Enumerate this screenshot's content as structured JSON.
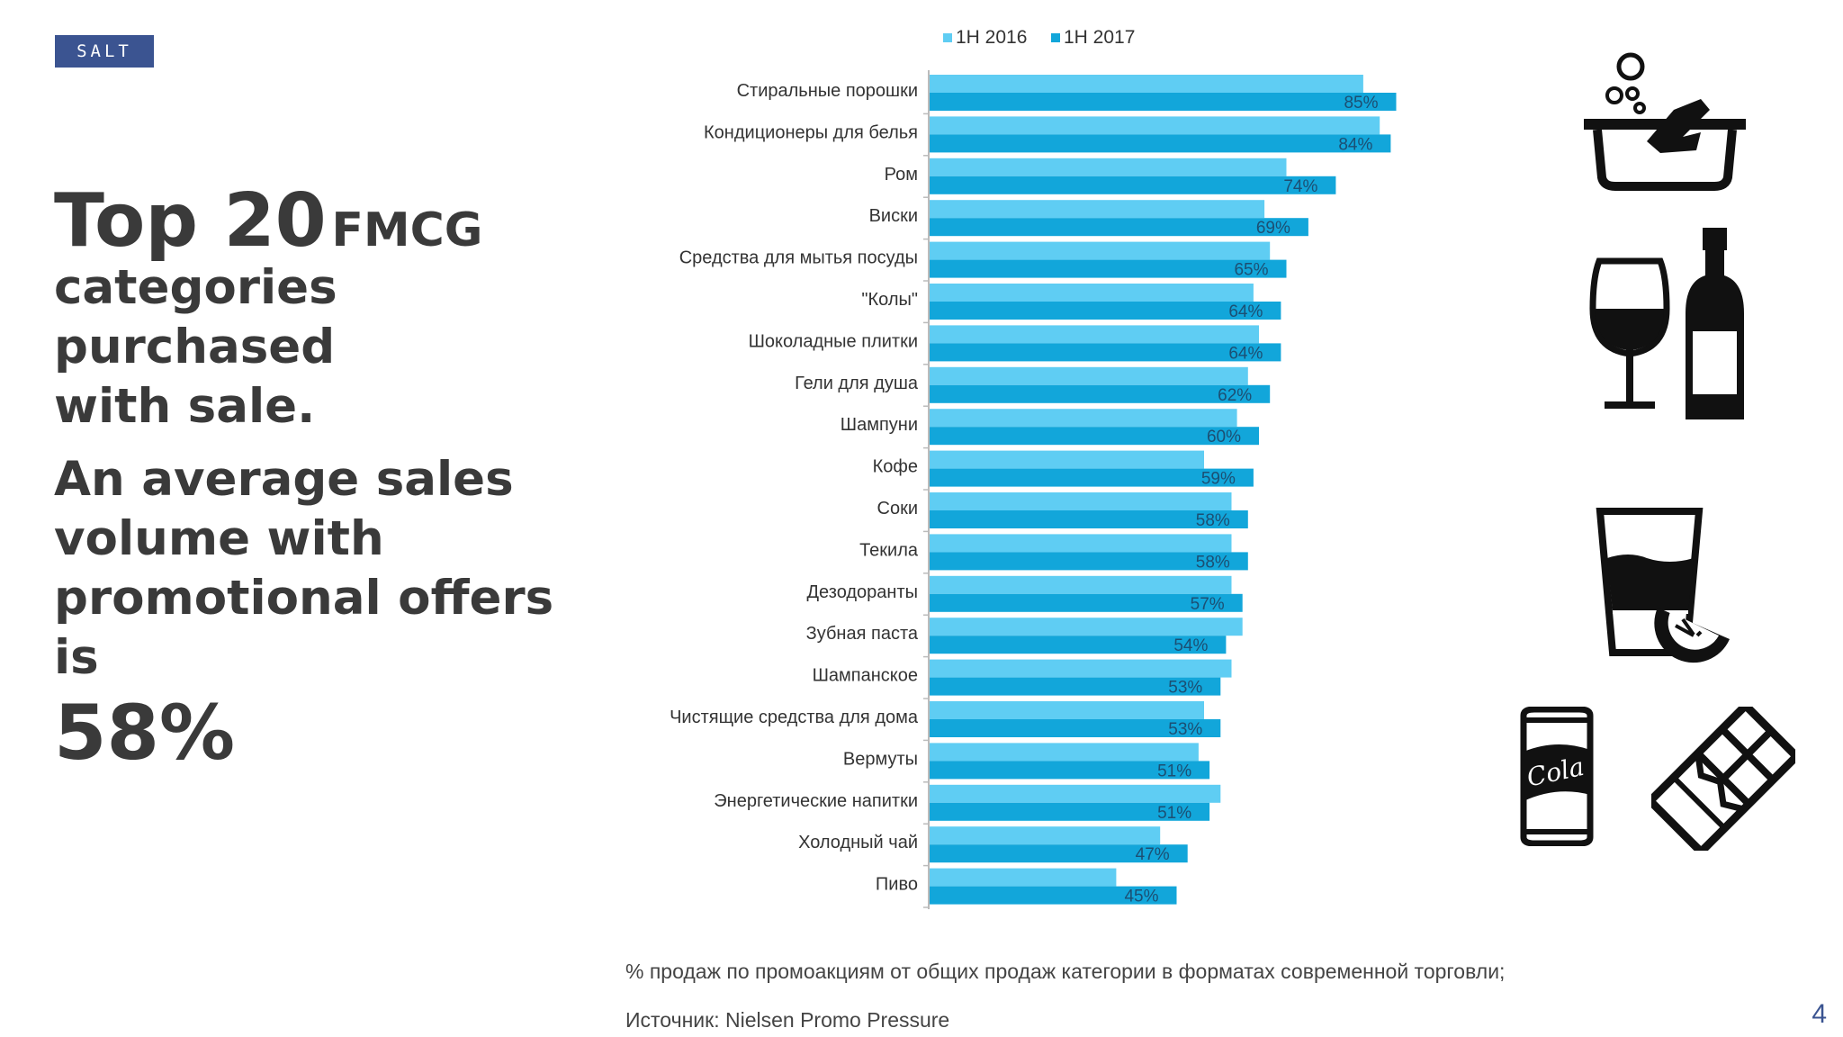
{
  "logo": {
    "text": "SALT"
  },
  "headline": {
    "big": "Top 20",
    "mid": "FMCG",
    "line2": "categories purchased",
    "line3": "with sale."
  },
  "subtext": {
    "line1": "An average sales",
    "line2": "volume with",
    "line3": "promotional offers is",
    "value": "58%"
  },
  "chart_data": {
    "type": "bar",
    "orientation": "horizontal",
    "legend_position": "top",
    "categories": [
      "Стиральные порошки",
      "Кондиционеры для белья",
      "Ром",
      "Виски",
      "Средства для мытья посуды",
      "\"Колы\"",
      "Шоколадные плитки",
      "Гели для душа",
      "Шампуни",
      "Кофе",
      "Соки",
      "Текила",
      "Дезодоранты",
      "Зубная паста",
      "Шампанское",
      "Чистящие средства для дома",
      "Вермуты",
      "Энергетические напитки",
      "Холодный чай",
      "Пиво"
    ],
    "series": [
      {
        "name": "1H 2016",
        "color": "#5fcdf3",
        "values": [
          79,
          82,
          65,
          61,
          62,
          59,
          60,
          58,
          56,
          50,
          55,
          55,
          55,
          57,
          55,
          50,
          49,
          53,
          42,
          34
        ]
      },
      {
        "name": "1H 2017",
        "color": "#12a6da",
        "values": [
          85,
          84,
          74,
          69,
          65,
          64,
          64,
          62,
          60,
          59,
          58,
          58,
          57,
          54,
          53,
          53,
          51,
          51,
          47,
          45
        ]
      }
    ],
    "value_labels": [
      "85%",
      "84%",
      "74%",
      "69%",
      "65%",
      "64%",
      "64%",
      "62%",
      "60%",
      "59%",
      "58%",
      "58%",
      "57%",
      "54%",
      "53%",
      "53%",
      "51%",
      "51%",
      "47%",
      "45%"
    ],
    "xlim": [
      0,
      100
    ],
    "grid": false
  },
  "footer": {
    "note": "% продаж по промоакциям от общих продаж категории в форматах современной торговли;",
    "source": "Источник: Nielsen Promo Pressure",
    "page": "4"
  },
  "icons": [
    "laundry-basin-icon",
    "wine-bottle-glass-icon",
    "juice-glass-icon",
    "cola-can-icon",
    "chocolate-bar-icon"
  ],
  "colors": {
    "logo_bg": "#3b5491",
    "text": "#3a3a3a"
  }
}
